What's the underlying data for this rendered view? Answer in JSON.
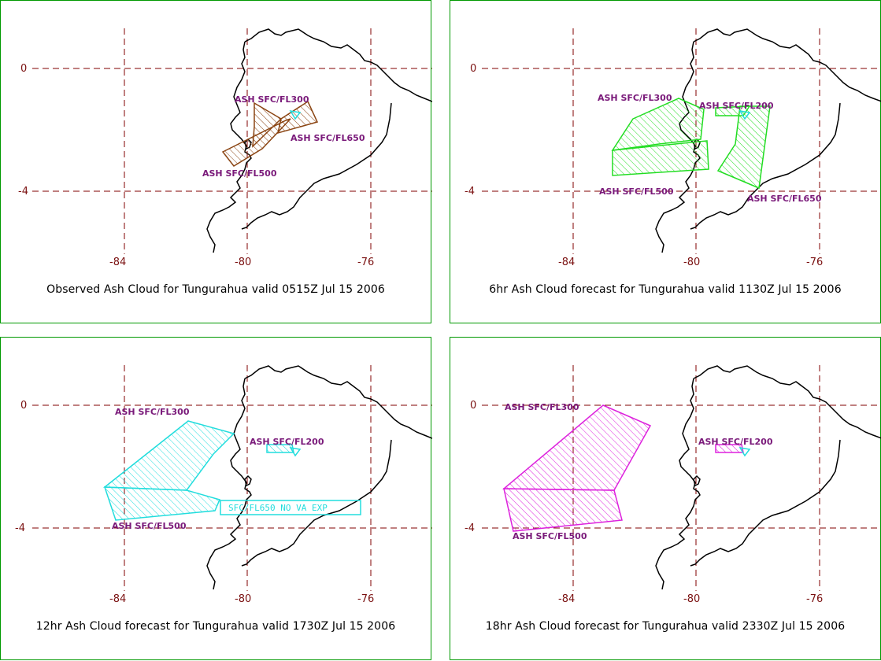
{
  "colors": {
    "panel_border": "#009900",
    "grid": "#800000",
    "coast": "#000000",
    "label": "#7a1a7a",
    "obs": "#8b4513",
    "fc6": "#22dd22",
    "fc12": "#22dddd",
    "fc18": "#dd22dd"
  },
  "axes": {
    "lat_ticks": [
      "0",
      "-4"
    ],
    "lon_ticks": [
      "-84",
      "-80",
      "-76"
    ]
  },
  "panels": [
    {
      "caption": "Observed Ash Cloud for Tungurahua valid 0515Z Jul 15 2006",
      "color": "#8b4513",
      "labels": [
        "ASH SFC/FL300",
        "ASH SFC/FL650",
        "ASH SFC/FL500"
      ]
    },
    {
      "caption": "6hr Ash Cloud forecast for Tungurahua valid 1130Z Jul 15 2006",
      "color": "#22dd22",
      "labels": [
        "ASH SFC/FL300",
        "ASH SFC/FL200",
        "ASH SFC/FL500",
        "ASH SFC/FL650"
      ]
    },
    {
      "caption": "12hr Ash Cloud forecast for Tungurahua valid 1730Z Jul 15 2006",
      "color": "#22dddd",
      "labels": [
        "ASH SFC/FL300",
        "ASH SFC/FL200",
        "ASH SFC/FL500"
      ],
      "box_label": "SFC/FL650 NO VA EXP"
    },
    {
      "caption": "18hr Ash Cloud forecast for Tungurahua valid 2330Z Jul 15 2006",
      "color": "#dd22dd",
      "labels": [
        "ASH SFC/FL300",
        "ASH SFC/FL200",
        "ASH SFC/FL500"
      ]
    }
  ]
}
